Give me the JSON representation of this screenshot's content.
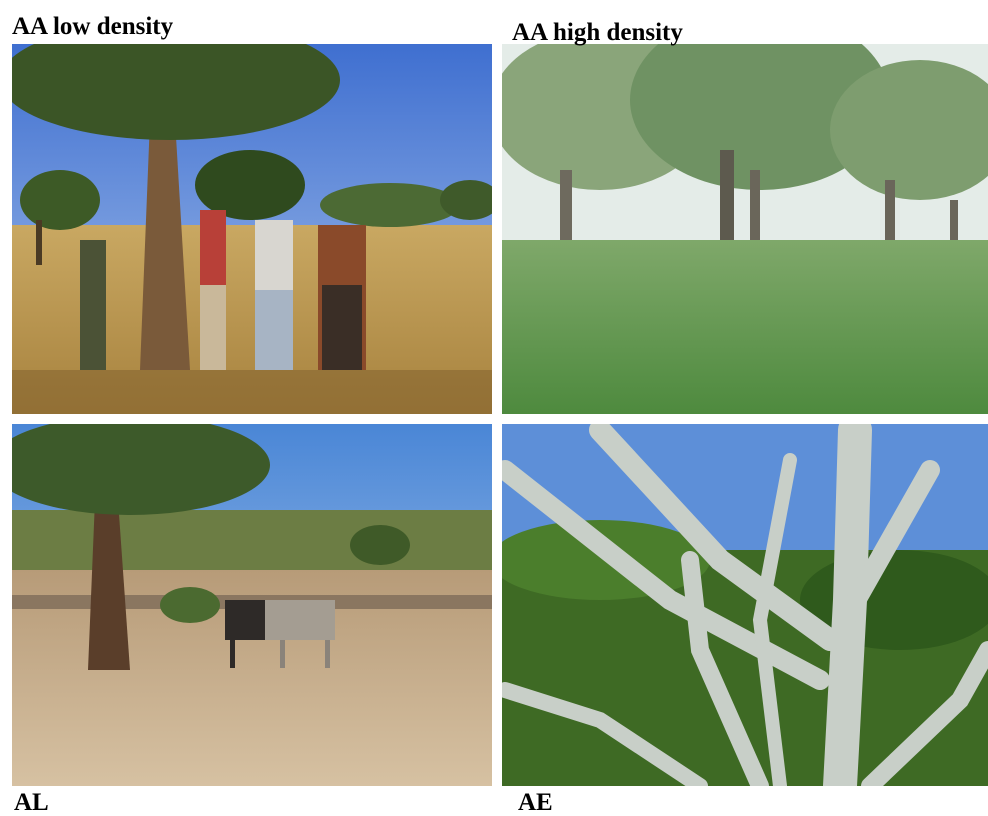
{
  "panels": [
    {
      "label": "AA low density"
    },
    {
      "label": "AA high density"
    },
    {
      "label": "AL"
    },
    {
      "label": "AE"
    }
  ]
}
